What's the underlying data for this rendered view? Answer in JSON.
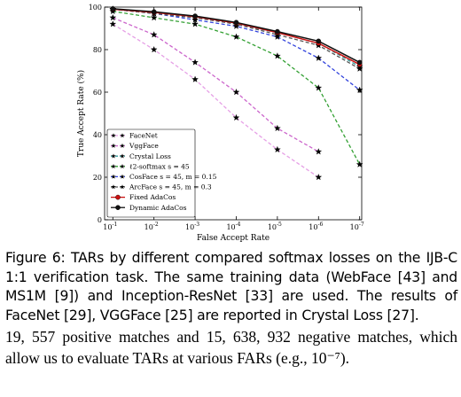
{
  "chart_data": {
    "type": "line",
    "title": "",
    "xlabel": "False Accept Rate",
    "ylabel": "True Accept Rate (%)",
    "x": [
      "10^-1",
      "10^-2",
      "10^-3",
      "10^-4",
      "10^-5",
      "10^-6",
      "10^-7"
    ],
    "x_exponents": [
      -1,
      -2,
      -3,
      -4,
      -5,
      -6,
      -7
    ],
    "ylim": [
      0,
      100
    ],
    "yticks": [
      0,
      20,
      40,
      60,
      80,
      100
    ],
    "legend_position": "bottom-left",
    "series": [
      {
        "name": "FaceNet",
        "color": "#e6a0e6",
        "style": "dashed",
        "marker": "star",
        "points": [
          [
            -1,
            92
          ],
          [
            -2,
            80
          ],
          [
            -3,
            66
          ],
          [
            -4,
            48
          ],
          [
            -5,
            33
          ],
          [
            -6,
            20
          ]
        ]
      },
      {
        "name": "VggFace",
        "color": "#cc66cc",
        "style": "dashed",
        "marker": "star",
        "points": [
          [
            -1,
            95
          ],
          [
            -2,
            87
          ],
          [
            -3,
            74
          ],
          [
            -4,
            60
          ],
          [
            -5,
            43
          ],
          [
            -6,
            32
          ]
        ]
      },
      {
        "name": "Crystal Loss",
        "color": "#339999",
        "style": "dashed",
        "marker": "star",
        "points": [
          [
            -1,
            99
          ],
          [
            -2,
            97
          ],
          [
            -3,
            95
          ],
          [
            -4,
            92
          ],
          [
            -5,
            88
          ],
          [
            -6,
            83
          ],
          [
            -7,
            72
          ]
        ]
      },
      {
        "name": "ℓ2-softmax s = 45",
        "color": "#33a033",
        "style": "dashed",
        "marker": "star",
        "points": [
          [
            -1,
            98
          ],
          [
            -2,
            95
          ],
          [
            -3,
            92
          ],
          [
            -4,
            86
          ],
          [
            -5,
            77
          ],
          [
            -6,
            62
          ],
          [
            -7,
            26
          ]
        ]
      },
      {
        "name": "CosFace s = 45, m = 0.15",
        "color": "#3344dd",
        "style": "dashed",
        "marker": "star",
        "points": [
          [
            -1,
            99
          ],
          [
            -2,
            97
          ],
          [
            -3,
            94
          ],
          [
            -4,
            91
          ],
          [
            -5,
            86
          ],
          [
            -6,
            76
          ],
          [
            -7,
            61
          ]
        ]
      },
      {
        "name": "ArcFace s = 45, m = 0.3",
        "color": "#555555",
        "style": "dashed",
        "marker": "star",
        "points": [
          [
            -1,
            99
          ],
          [
            -2,
            97
          ],
          [
            -3,
            95
          ],
          [
            -4,
            92
          ],
          [
            -5,
            87
          ],
          [
            -6,
            82
          ],
          [
            -7,
            71
          ]
        ]
      },
      {
        "name": "Fixed AdaCos",
        "color": "#cc1111",
        "style": "solid",
        "marker": "circle",
        "points": [
          [
            -1,
            99
          ],
          [
            -2,
            97.5
          ],
          [
            -3,
            95.5
          ],
          [
            -4,
            92.5
          ],
          [
            -5,
            88
          ],
          [
            -6,
            83
          ],
          [
            -7,
            73
          ]
        ]
      },
      {
        "name": "Dynamic AdaCos",
        "color": "#111111",
        "style": "solid",
        "marker": "circle",
        "points": [
          [
            -1,
            99.2
          ],
          [
            -2,
            97.8
          ],
          [
            -3,
            95.8
          ],
          [
            -4,
            92.8
          ],
          [
            -5,
            88.5
          ],
          [
            -6,
            84
          ],
          [
            -7,
            74
          ]
        ]
      }
    ]
  },
  "caption": {
    "text": "Figure 6: TARs by different compared softmax losses on the IJB-C 1:1 verification task. The same training data (WebFace [43] and MS1M [9]) and Inception-ResNet [33] are used. The results of FaceNet [29], VGGFace [25] are reported in Crystal Loss [27]."
  },
  "body": {
    "text": "19, 557 positive matches and 15, 638, 932 negative matches, which allow us to evaluate TARs at various FARs (e.g., 10⁻⁷)."
  }
}
